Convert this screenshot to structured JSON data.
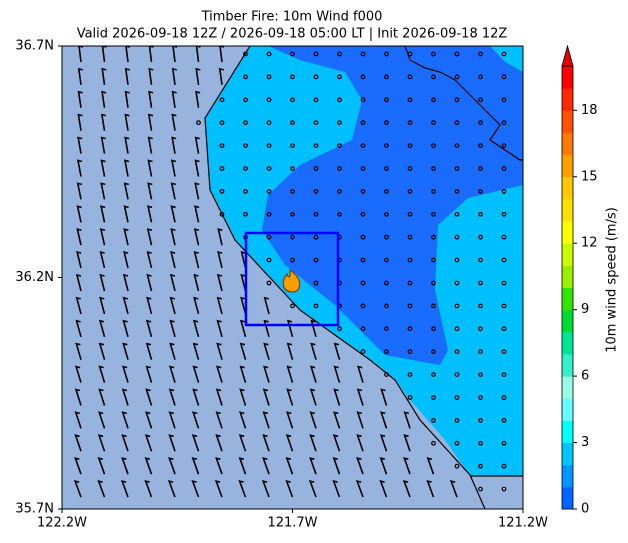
{
  "chart_data": {
    "type": "map",
    "title": "Timber Fire: 10m Wind f000",
    "subtitle": "Valid 2026-09-18 12Z / 2026-09-18 05:00 LT | Init 2026-09-18 12Z",
    "xlim": [
      -122.2,
      -121.2
    ],
    "xticks": [
      {
        "value": -122.2,
        "label": "122.2W"
      },
      {
        "value": -121.7,
        "label": "121.7W"
      },
      {
        "value": -121.2,
        "label": "121.2W"
      }
    ],
    "ylim": [
      35.7,
      36.7
    ],
    "yticks": [
      {
        "value": 35.7,
        "label": "35.7N"
      },
      {
        "value": 36.2,
        "label": "36.2N"
      },
      {
        "value": 36.7,
        "label": "36.7N"
      }
    ],
    "colorbar": {
      "label": "10m wind speed (m/s)",
      "lim": [
        0,
        20
      ],
      "ticks": [
        0,
        3,
        6,
        9,
        12,
        15,
        18
      ],
      "colors": [
        "#0064ff",
        "#0096ff",
        "#00c8ff",
        "#00ffff",
        "#64ffff",
        "#96ffe6",
        "#32f0c8",
        "#00e696",
        "#00dc32",
        "#32e600",
        "#96f000",
        "#c8ff00",
        "#ffff00",
        "#ffe100",
        "#ffc800",
        "#ffa000",
        "#ff7800",
        "#ff5000",
        "#ff2800",
        "#ff0000"
      ],
      "extend_color": "#e60000"
    }
  }
}
